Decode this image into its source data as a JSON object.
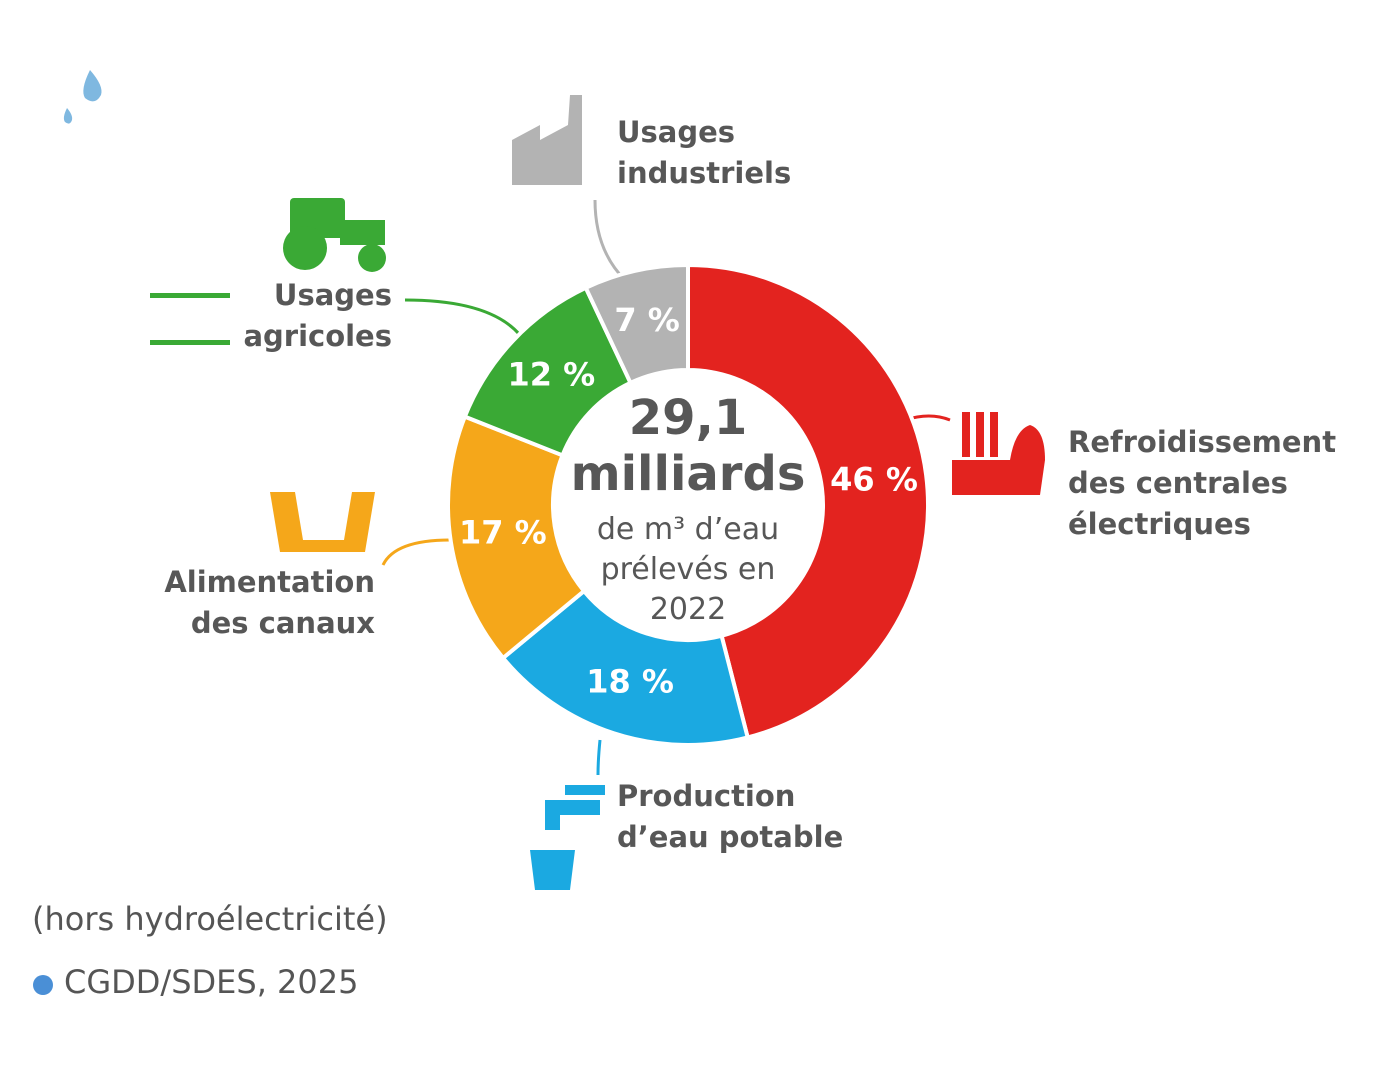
{
  "chart_data": {
    "type": "donut",
    "center_title": "29,1 milliards",
    "center_subtitle": "de m³ d’eau prélevés en 2022",
    "categories": [
      "Refroidissement des centrales électriques",
      "Production d’eau potable",
      "Alimentation des canaux",
      "Usages agricoles",
      "Usages industriels"
    ],
    "values": [
      46,
      18,
      17,
      12,
      7
    ],
    "value_labels": [
      "46 %",
      "18 %",
      "17 %",
      "12 %",
      "7 %"
    ],
    "colors": [
      "#e3231f",
      "#1ba9e1",
      "#f5a71a",
      "#3aa935",
      "#b3b3b3"
    ],
    "note": "(hors hydroélectricité)",
    "source": "CGDD/SDES, 2025"
  }
}
